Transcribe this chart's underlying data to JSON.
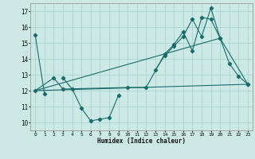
{
  "xlabel": "Humidex (Indice chaleur)",
  "bg_color": "#cce9e5",
  "grid_color": "#aad4cf",
  "line_color": "#1a6b6b",
  "xlim": [
    -0.5,
    23.5
  ],
  "ylim": [
    9.5,
    17.5
  ],
  "xticks": [
    0,
    1,
    2,
    3,
    4,
    5,
    6,
    7,
    8,
    9,
    10,
    11,
    12,
    13,
    14,
    15,
    16,
    17,
    18,
    19,
    20,
    21,
    22,
    23
  ],
  "yticks": [
    10,
    11,
    12,
    13,
    14,
    15,
    16,
    17
  ],
  "line1_x": [
    0,
    1,
    3,
    4,
    5,
    6,
    7,
    8,
    9,
    13,
    14,
    15,
    16,
    17,
    18,
    19,
    20,
    21,
    22,
    23
  ],
  "line1_y": [
    15.5,
    11.8,
    12.8,
    12.1,
    10.9,
    10.1,
    10.2,
    10.3,
    11.7,
    13.3,
    14.2,
    14.8,
    15.4,
    16.5,
    15.4,
    17.2,
    15.3,
    13.7,
    12.9,
    12.4
  ],
  "line2_x": [
    0,
    2,
    3,
    10,
    12,
    14,
    15,
    16,
    17,
    18,
    19,
    20,
    23
  ],
  "line2_y": [
    12.0,
    12.8,
    12.1,
    12.2,
    12.2,
    14.3,
    14.9,
    15.7,
    14.5,
    16.6,
    16.5,
    15.3,
    12.4
  ],
  "line3_x": [
    0,
    23
  ],
  "line3_y": [
    12.0,
    12.4
  ],
  "line4_x": [
    0,
    20
  ],
  "line4_y": [
    12.0,
    15.3
  ]
}
